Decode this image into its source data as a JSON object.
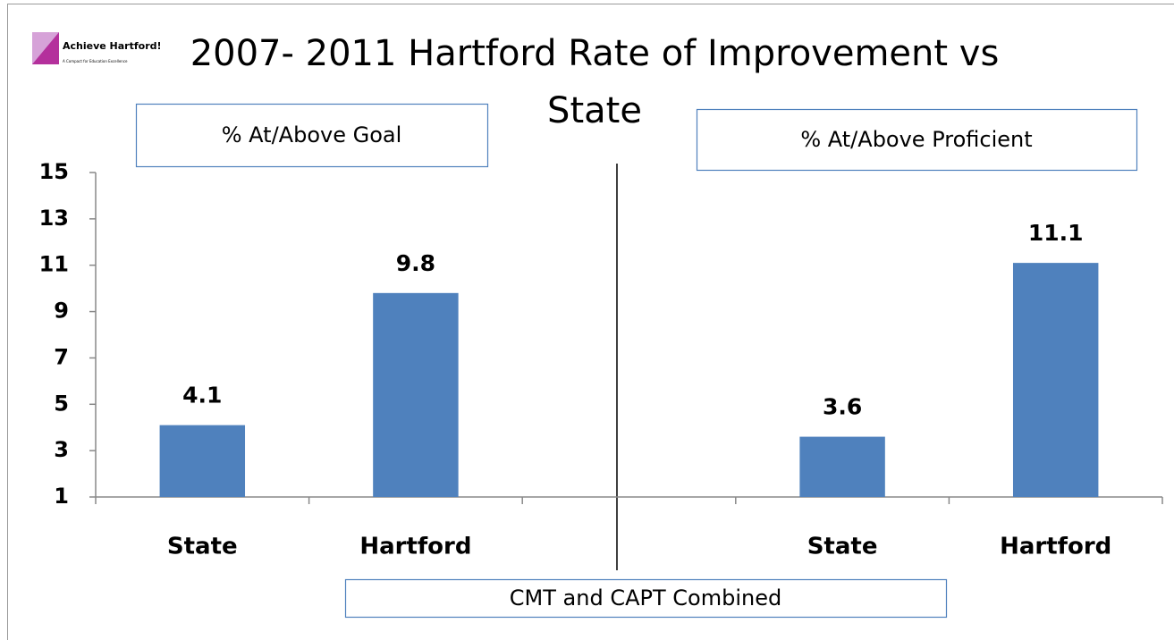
{
  "chart_data": {
    "type": "bar",
    "title": "2007- 2011 Hartford Rate of Improvement vs State",
    "logo": {
      "name": "Achieve Hartford!",
      "tagline": "A Compact for Education Excellence"
    },
    "annotations": [
      "% At/Above Goal",
      "% At/Above Proficient",
      "CMT and CAPT Combined"
    ],
    "categories": [
      "State",
      "Hartford",
      null,
      "State",
      "Hartford"
    ],
    "values": [
      4.1,
      9.8,
      null,
      3.6,
      11.1
    ],
    "color": "#4f81bd",
    "ylim": [
      1,
      15
    ],
    "yticks": [
      1,
      3,
      5,
      7,
      9,
      11,
      13,
      15
    ],
    "grid": false
  }
}
